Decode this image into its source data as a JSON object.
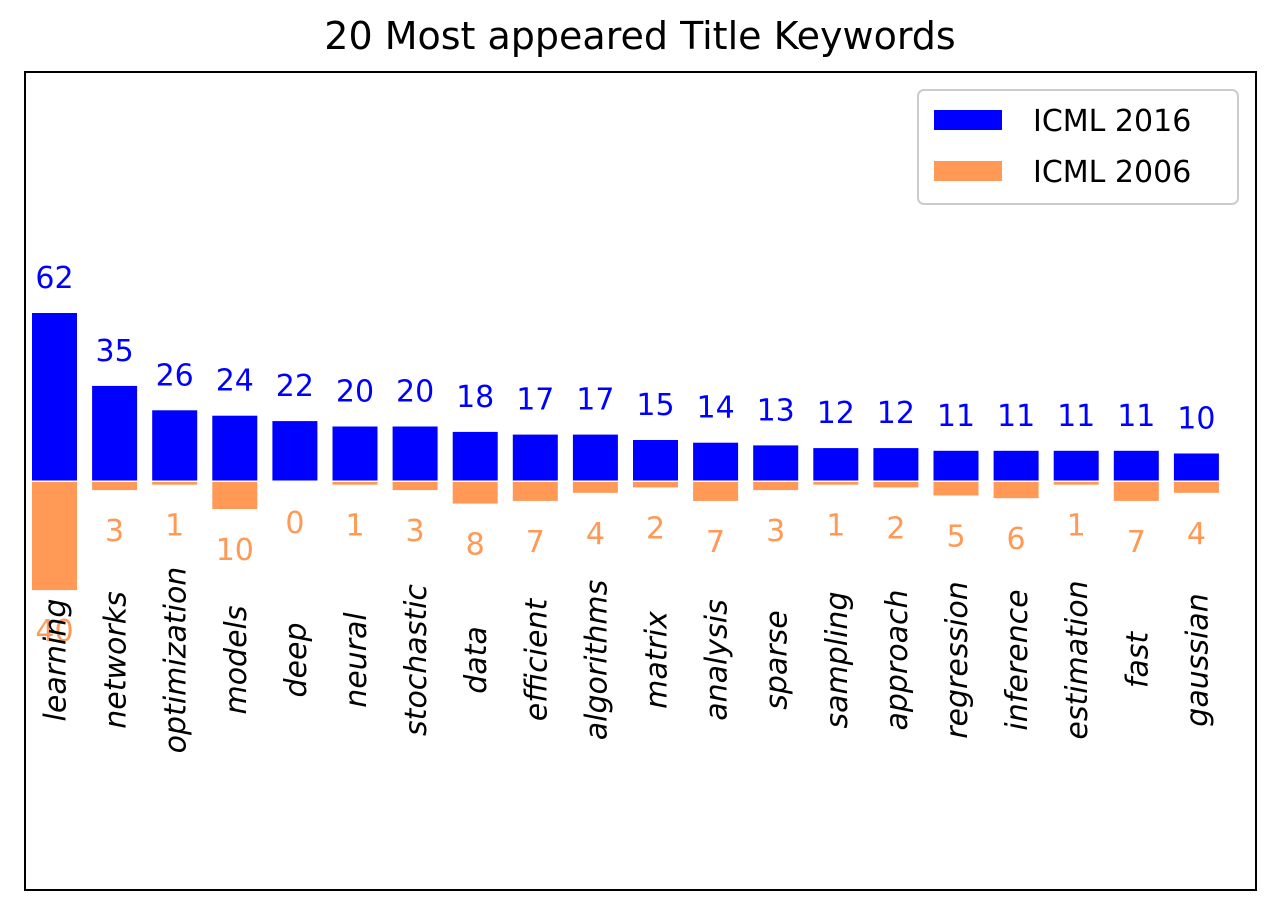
{
  "chart_data": {
    "type": "bar",
    "title": "20 Most appeared Title Keywords",
    "xlabel": "",
    "ylabel": "",
    "grid": false,
    "legend_position": "top-right",
    "categories": [
      "learning",
      "networks",
      "optimization",
      "models",
      "deep",
      "neural",
      "stochastic",
      "data",
      "efficient",
      "algorithms",
      "matrix",
      "analysis",
      "sparse",
      "sampling",
      "approach",
      "regression",
      "inference",
      "estimation",
      "fast",
      "gaussian"
    ],
    "series": [
      {
        "name": "ICML 2016",
        "color": "#0000ff",
        "direction": "up",
        "values": [
          62,
          35,
          26,
          24,
          22,
          20,
          20,
          18,
          17,
          17,
          15,
          14,
          13,
          12,
          12,
          11,
          11,
          11,
          11,
          10
        ]
      },
      {
        "name": "ICML 2006",
        "color": "#ff9955",
        "direction": "down",
        "values": [
          40,
          3,
          1,
          10,
          0,
          1,
          3,
          8,
          7,
          4,
          2,
          7,
          3,
          1,
          2,
          5,
          6,
          1,
          7,
          4
        ]
      }
    ]
  }
}
